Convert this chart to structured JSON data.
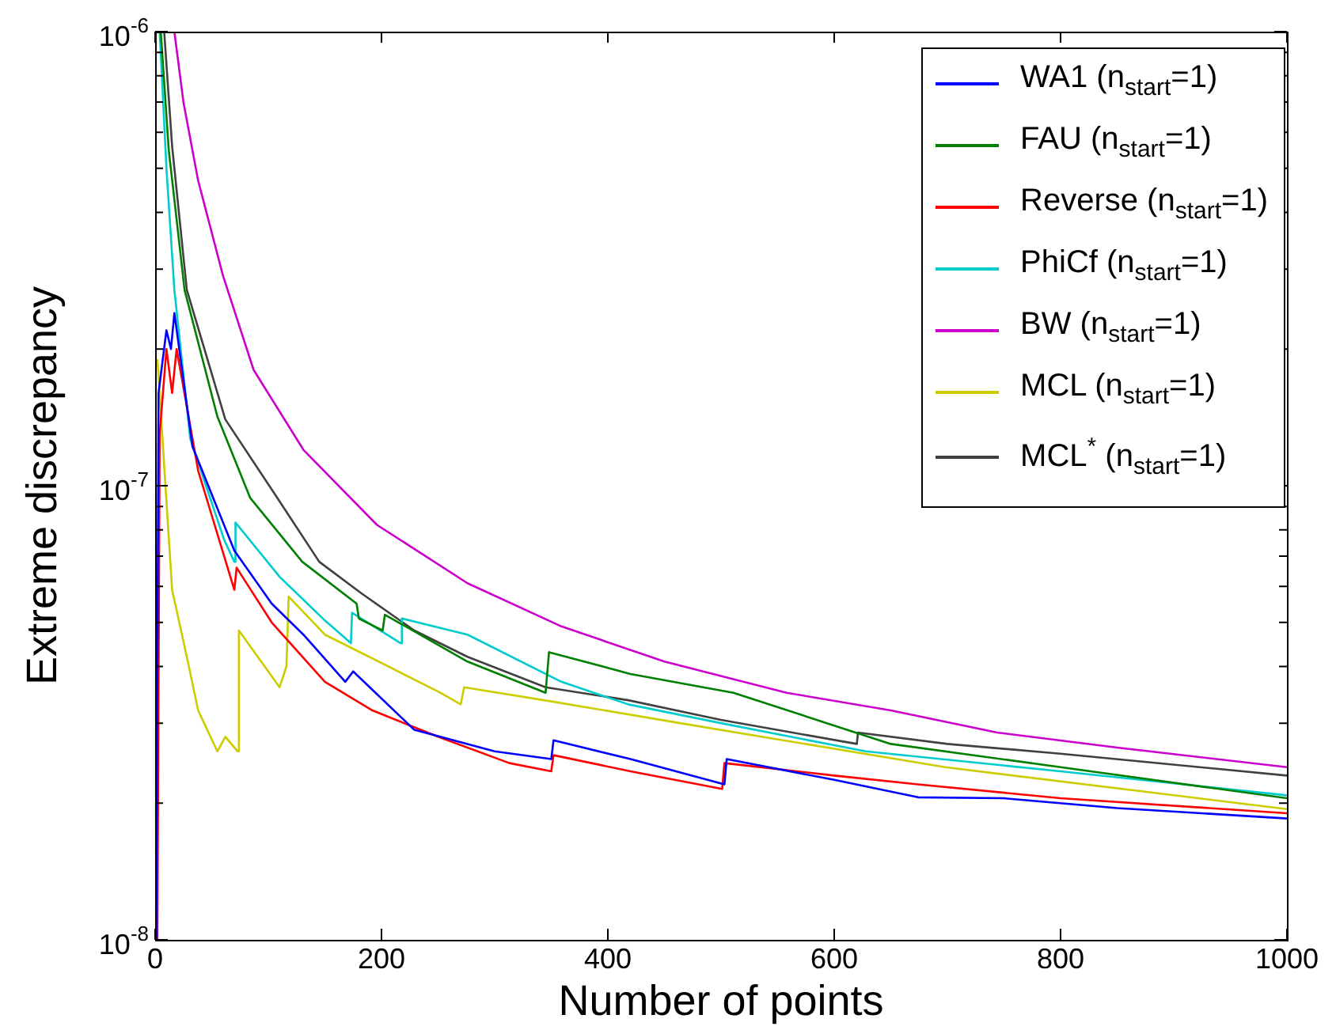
{
  "chart_data": {
    "type": "line",
    "xlabel": "Number of points",
    "ylabel": "Extreme discrepancy",
    "log": "y",
    "legend": "top right",
    "xlim": [
      0,
      1000
    ],
    "xticks": [
      0,
      200,
      400,
      600,
      800,
      1000
    ],
    "ylim": [
      1e-08,
      1e-06
    ],
    "yticks": [
      {
        "value": 1e-08,
        "label": "10$^{-8}$"
      },
      {
        "value": 2e-08,
        "label": null
      },
      {
        "value": 3e-08,
        "label": null
      },
      {
        "value": 4e-08,
        "label": null
      },
      {
        "value": 5e-08,
        "label": null
      },
      {
        "value": 6e-08,
        "label": null
      },
      {
        "value": 7e-08,
        "label": null
      },
      {
        "value": 8e-08,
        "label": null
      },
      {
        "value": 9e-08,
        "label": null
      },
      {
        "value": 1e-07,
        "label": "10$^{-7}$"
      },
      {
        "value": 2e-07,
        "label": null
      },
      {
        "value": 3e-07,
        "label": null
      },
      {
        "value": 4e-07,
        "label": null
      },
      {
        "value": 5e-07,
        "label": null
      },
      {
        "value": 6e-07,
        "label": null
      },
      {
        "value": 7e-07,
        "label": null
      },
      {
        "value": 8e-07,
        "label": null
      },
      {
        "value": 9e-07,
        "label": null
      },
      {
        "value": 1e-06,
        "label": "10$^{-6}$"
      }
    ],
    "series": [
      {
        "name": "WA1 (n$_{start}$=1)",
        "color": "#0000ff",
        "x": [
          1,
          3,
          10,
          14,
          17,
          33,
          70,
          103,
          131,
          168,
          175,
          229,
          300,
          350,
          352,
          420,
          503,
          505,
          600,
          674,
          750,
          850,
          1000
        ],
        "values": [
          1e-08,
          1.6e-07,
          2.2e-07,
          2e-07,
          2.4e-07,
          1.22e-07,
          7.2e-08,
          5.5e-08,
          4.7e-08,
          3.7e-08,
          3.9e-08,
          2.9e-08,
          2.6e-08,
          2.5e-08,
          2.75e-08,
          2.5e-08,
          2.2e-08,
          2.5e-08,
          2.25e-08,
          2.06e-08,
          2.05e-08,
          1.95e-08,
          1.85e-08
        ]
      },
      {
        "name": "FAU (n$_{start}$=1)",
        "color": "#008000",
        "x": [
          5,
          12,
          26,
          55,
          84,
          130,
          178,
          180,
          201,
          203,
          276,
          345,
          348,
          420,
          511,
          650,
          800,
          1000
        ],
        "values": [
          1e-06,
          5.5e-07,
          2.7e-07,
          1.42e-07,
          9.4e-08,
          6.8e-08,
          5.5e-08,
          5.1e-08,
          4.8e-08,
          5.2e-08,
          4.1e-08,
          3.5e-08,
          4.3e-08,
          3.85e-08,
          3.5e-08,
          2.7e-08,
          2.4e-08,
          2.05e-08
        ]
      },
      {
        "name": "Reverse (n$_{start}$=1)",
        "color": "#ff0000",
        "x": [
          2,
          4,
          10,
          15,
          19,
          38,
          70,
          72,
          103,
          150,
          192,
          250,
          313,
          350,
          352,
          420,
          501,
          503,
          600,
          674,
          800,
          1000
        ],
        "values": [
          1e-08,
          1.3e-07,
          2e-07,
          1.6e-07,
          2e-07,
          1.08e-07,
          5.9e-08,
          6.6e-08,
          5e-08,
          3.7e-08,
          3.2e-08,
          2.8e-08,
          2.45e-08,
          2.35e-08,
          2.55e-08,
          2.35e-08,
          2.15e-08,
          2.45e-08,
          2.3e-08,
          2.2e-08,
          2.05e-08,
          1.9e-08
        ]
      },
      {
        "name": "PhiCf (n$_{start}$=1)",
        "color": "#00cccc",
        "x": [
          4,
          10,
          17,
          31,
          61,
          70,
          71,
          110,
          150,
          173,
          174,
          217,
          218,
          276,
          359,
          418,
          500,
          628,
          800,
          1000
        ],
        "values": [
          1e-06,
          5e-07,
          2.7e-07,
          1.27e-07,
          7.6e-08,
          6.8e-08,
          8.3e-08,
          6.3e-08,
          5.05e-08,
          4.5e-08,
          5.25e-08,
          4.5e-08,
          5.1e-08,
          4.7e-08,
          3.7e-08,
          3.3e-08,
          3e-08,
          2.6e-08,
          2.35e-08,
          2.08e-08
        ]
      },
      {
        "name": "BW (n$_{start}$=1)",
        "color": "#cc00cc",
        "x": [
          17,
          25,
          38,
          60,
          87,
          131,
          196,
          276,
          359,
          450,
          558,
          650,
          744,
          850,
          1000
        ],
        "values": [
          1e-06,
          7e-07,
          4.7e-07,
          2.9e-07,
          1.8e-07,
          1.2e-07,
          8.2e-08,
          6.1e-08,
          4.9e-08,
          4.1e-08,
          3.5e-08,
          3.2e-08,
          2.86e-08,
          2.65e-08,
          2.4e-08
        ]
      },
      {
        "name": "MCL (n$_{start}$=1)",
        "color": "#cccc00",
        "x": [
          2,
          15,
          28,
          38,
          55,
          62,
          73,
          74,
          110,
          116,
          118,
          150,
          206,
          252,
          270,
          273,
          350,
          464,
          698,
          1000
        ],
        "values": [
          1.9e-07,
          5.9e-08,
          4.2e-08,
          3.2e-08,
          2.6e-08,
          2.8e-08,
          2.6e-08,
          4.8e-08,
          3.6e-08,
          4e-08,
          5.7e-08,
          4.7e-08,
          4e-08,
          3.5e-08,
          3.3e-08,
          3.6e-08,
          3.35e-08,
          3e-08,
          2.4e-08,
          1.94e-08
        ]
      },
      {
        "name": "MCL$^{*}$ (n$_{start}$=1)",
        "color": "#404040",
        "x": [
          8,
          15,
          28,
          62,
          108,
          145,
          182,
          229,
          276,
          345,
          418,
          500,
          620,
          621,
          700,
          800,
          1000
        ],
        "values": [
          1e-06,
          5.6e-07,
          2.7e-07,
          1.4e-07,
          9.4e-08,
          6.8e-08,
          5.8e-08,
          4.8e-08,
          4.2e-08,
          3.6e-08,
          3.37e-08,
          3.05e-08,
          2.7e-08,
          2.86e-08,
          2.7e-08,
          2.57e-08,
          2.3e-08
        ]
      }
    ]
  }
}
